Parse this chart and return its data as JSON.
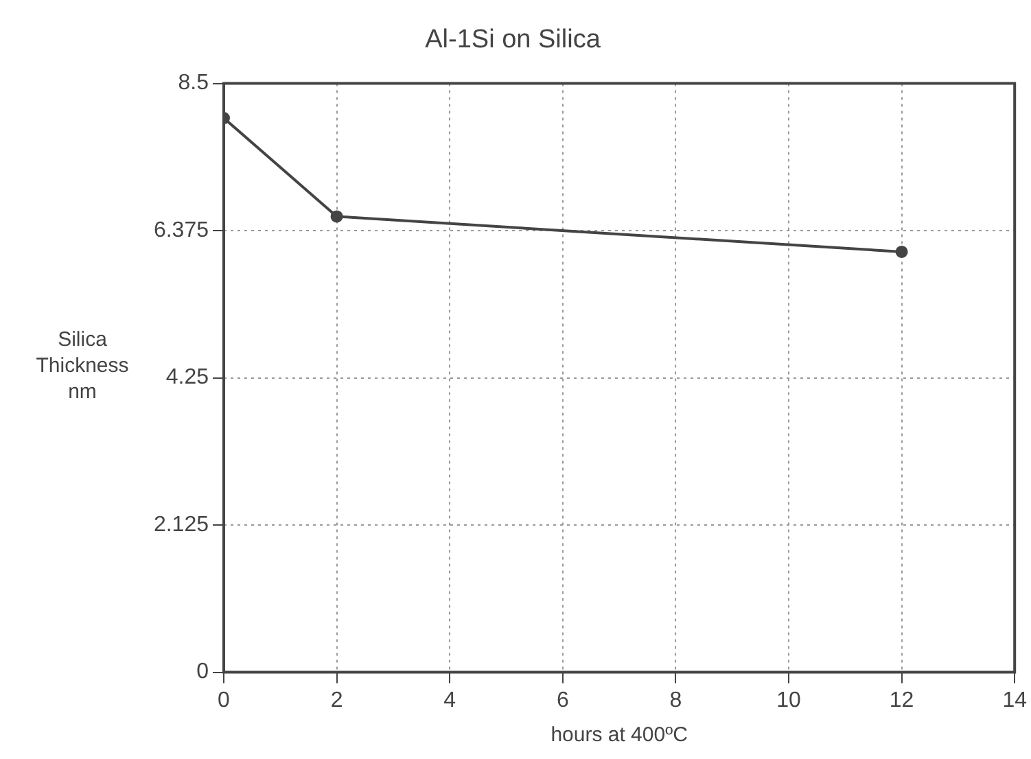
{
  "chart_data": {
    "type": "line",
    "title": "Al-1Si on Silica",
    "xlabel": "hours at 400ºC",
    "ylabel": "Silica Thickness nm",
    "x": [
      0,
      2,
      12
    ],
    "series": [
      {
        "color": "#444444",
        "values": [
          8.0,
          6.58,
          6.07
        ]
      }
    ],
    "xlim": [
      0,
      14
    ],
    "xticks": [
      0,
      2,
      4,
      6,
      8,
      10,
      12,
      14
    ],
    "ylim": [
      0,
      8.5
    ],
    "yticks": [
      0,
      2.125,
      4.25,
      6.375,
      8.5
    ],
    "grid": true,
    "legend": false,
    "marker": "circle",
    "line_style": "solid"
  }
}
